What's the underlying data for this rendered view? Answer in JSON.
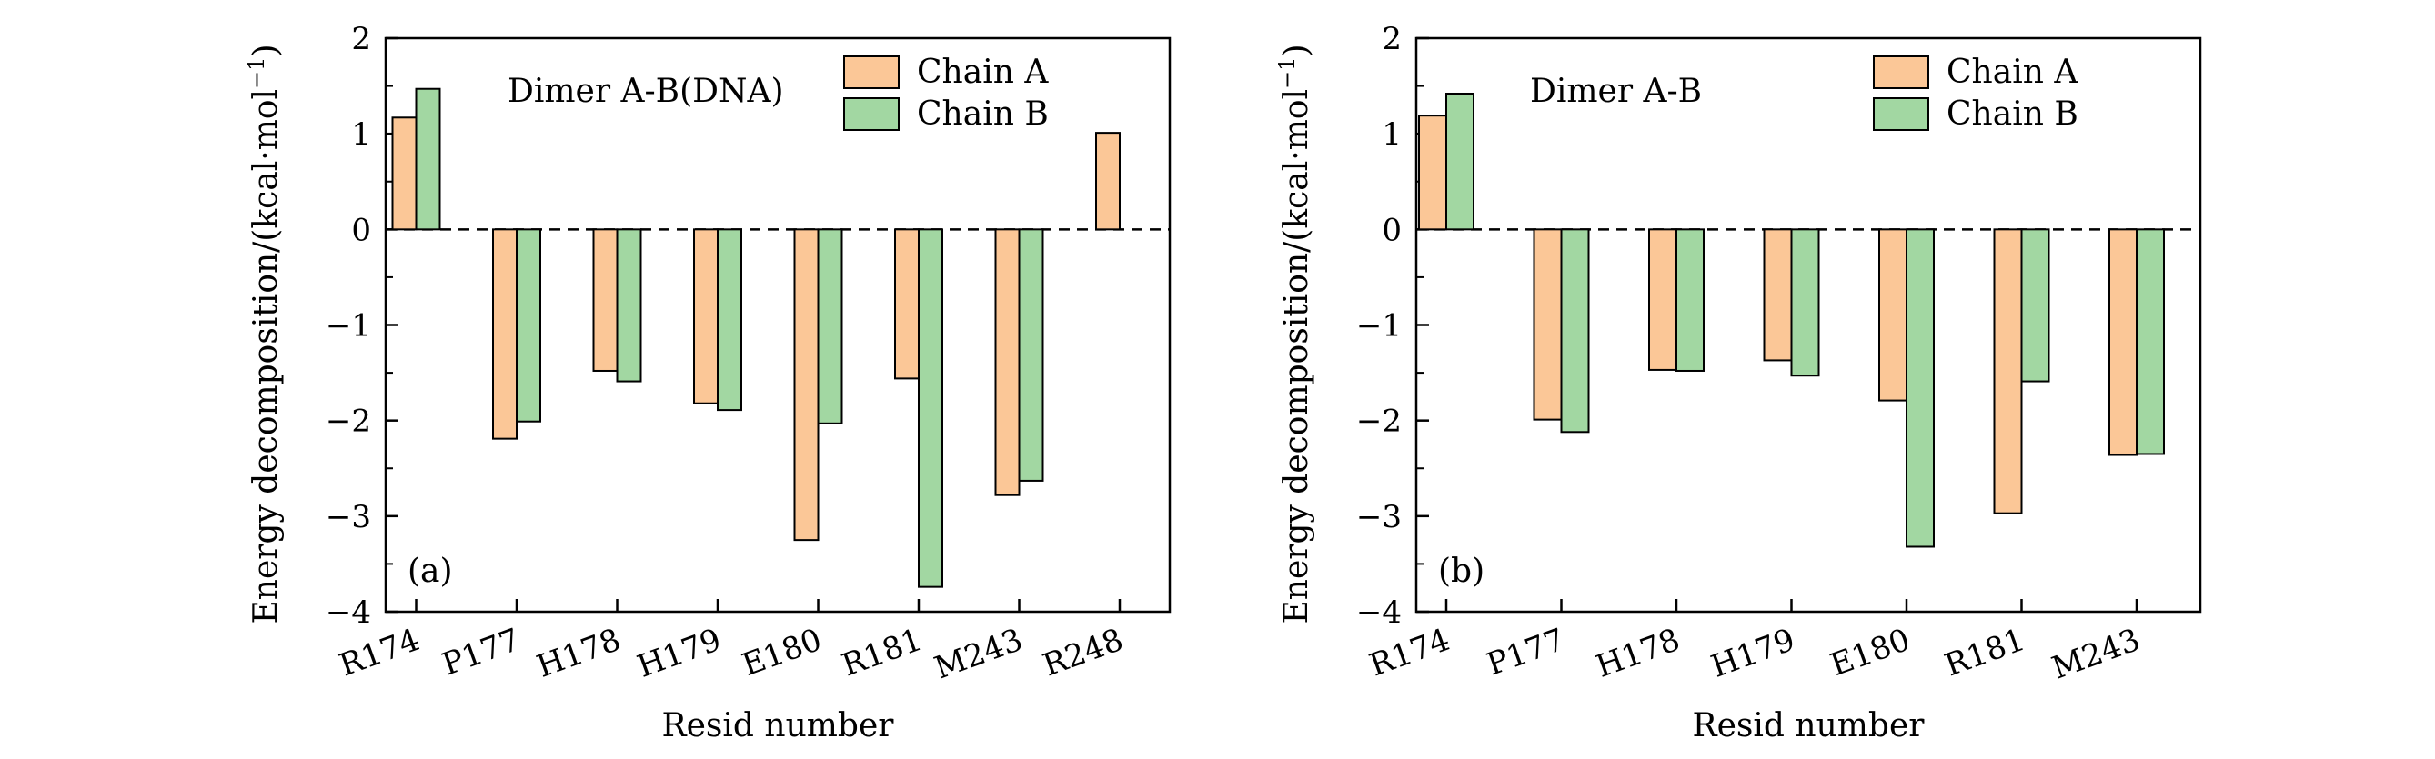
{
  "figure": {
    "colors": {
      "chain_a": "#fbc797",
      "chain_b": "#a2d7a2",
      "stroke": "#000000"
    }
  },
  "chart_data": [
    {
      "type": "bar",
      "panel_label": "(a)",
      "annotation": "Dimer A-B(DNA)",
      "xlabel": "Resid number",
      "ylabel_main": "Energy decomposition/(kcal·mol",
      "ylabel_sup": "−1",
      "ylabel_close": ")",
      "ylim": [
        -4,
        2
      ],
      "yticks": [
        2,
        1,
        0,
        -1,
        -2,
        -3,
        -4
      ],
      "ytick_labels": [
        "2",
        "1",
        "0",
        "−1",
        "−2",
        "−3",
        "−4"
      ],
      "categories": [
        "R174",
        "P177",
        "H178",
        "H179",
        "E180",
        "R181",
        "M243",
        "R248"
      ],
      "series": [
        {
          "name": "Chain A",
          "values": [
            1.17,
            -2.19,
            -1.48,
            -1.82,
            -3.25,
            -1.56,
            -2.78,
            1.01
          ]
        },
        {
          "name": "Chain B",
          "values": [
            1.47,
            -2.01,
            -1.59,
            -1.89,
            -2.03,
            -3.74,
            -2.63,
            null
          ]
        }
      ],
      "legend": [
        "Chain A",
        "Chain B"
      ],
      "zero_line": "dashed"
    },
    {
      "type": "bar",
      "panel_label": "(b)",
      "annotation": "Dimer A-B",
      "xlabel": "Resid number",
      "ylabel_main": "Energy decomposition/(kcal·mol",
      "ylabel_sup": "−1",
      "ylabel_close": ")",
      "ylim": [
        -4,
        2
      ],
      "yticks": [
        2,
        1,
        0,
        -1,
        -2,
        -3,
        -4
      ],
      "ytick_labels": [
        "2",
        "1",
        "0",
        "−1",
        "−2",
        "−3",
        "−4"
      ],
      "categories": [
        "R174",
        "P177",
        "H178",
        "H179",
        "E180",
        "R181",
        "M243"
      ],
      "series": [
        {
          "name": "Chain A",
          "values": [
            1.19,
            -1.99,
            -1.47,
            -1.37,
            -1.79,
            -2.97,
            -2.36
          ]
        },
        {
          "name": "Chain B",
          "values": [
            1.42,
            -2.12,
            -1.48,
            -1.53,
            -3.32,
            -1.59,
            -2.35
          ]
        }
      ],
      "legend": [
        "Chain A",
        "Chain B"
      ],
      "zero_line": "dashed"
    }
  ]
}
